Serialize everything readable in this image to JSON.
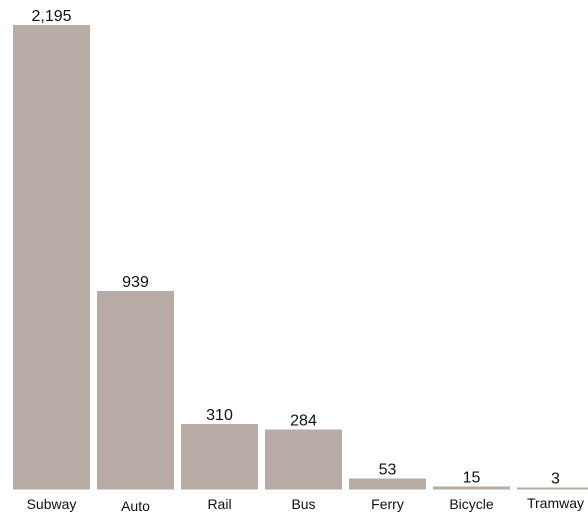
{
  "chart_data": {
    "type": "bar",
    "title": "",
    "xlabel": "",
    "ylabel": "",
    "categories": [
      "Subway",
      "Auto",
      "Rail",
      "Bus",
      "Ferry",
      "Bicycle",
      "Tramway"
    ],
    "values": [
      2195,
      939,
      310,
      284,
      53,
      15,
      3
    ],
    "value_labels": [
      "2,195",
      "939",
      "310",
      "284",
      "53",
      "15",
      "3"
    ],
    "ylim": [
      0,
      2195
    ],
    "grid": false,
    "legend": "none",
    "colors": {
      "bar": "#b8aba6",
      "text": "#111111"
    }
  }
}
